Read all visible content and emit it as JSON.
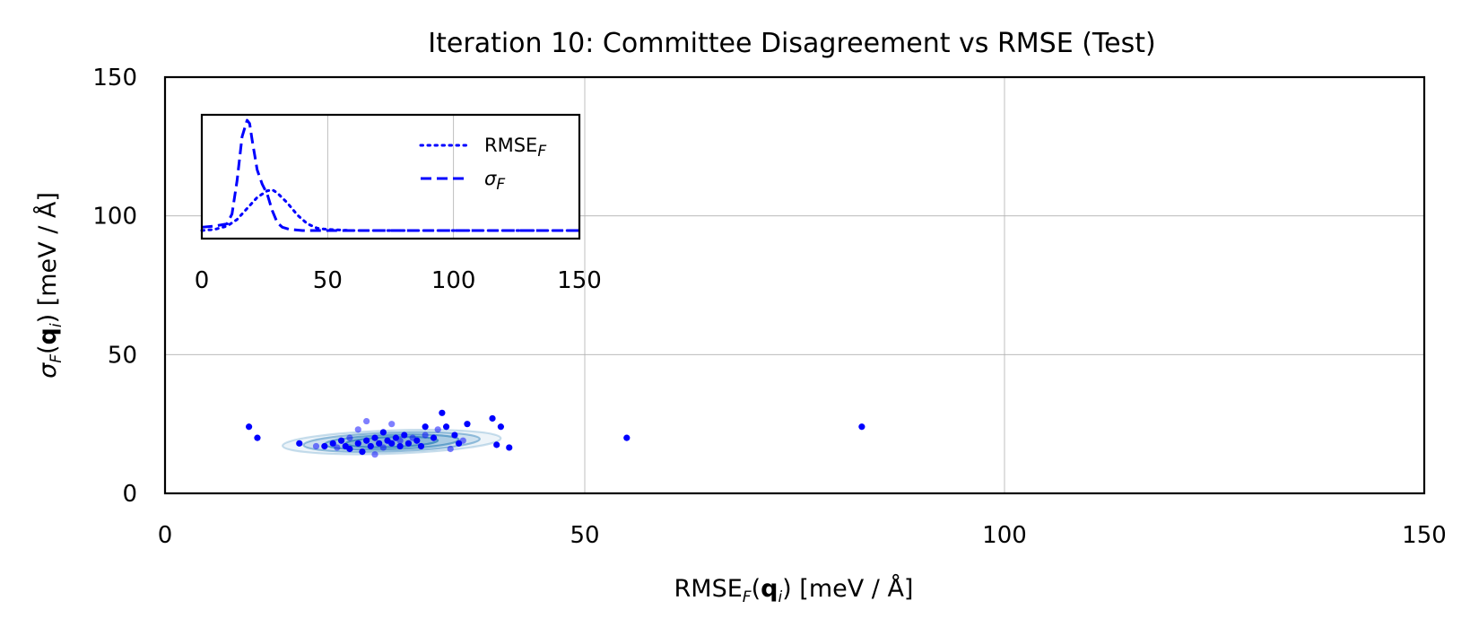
{
  "chart_data": [
    {
      "type": "scatter",
      "title": "Iteration 10: Committee Disagreement vs RMSE (Test)",
      "xlabel": "RMSE_F(q_i) [meV / Å]",
      "ylabel": "σ_F(q_i) [meV / Å]",
      "xlim": [
        0,
        150
      ],
      "ylim": [
        0,
        150
      ],
      "xticks": [
        "0",
        "50",
        "100",
        "150"
      ],
      "yticks": [
        "0",
        "50",
        "100",
        "150"
      ],
      "grid": true,
      "point_color": "#0000ff",
      "contour_color": "#2c7fb8",
      "points": [
        [
          10,
          24
        ],
        [
          11,
          20
        ],
        [
          16,
          18
        ],
        [
          18,
          17
        ],
        [
          19,
          17
        ],
        [
          20,
          18
        ],
        [
          20.5,
          16.5
        ],
        [
          21,
          19
        ],
        [
          21.5,
          17
        ],
        [
          22,
          20
        ],
        [
          22,
          16
        ],
        [
          23,
          18
        ],
        [
          23,
          23
        ],
        [
          23.5,
          15
        ],
        [
          24,
          19
        ],
        [
          24,
          26
        ],
        [
          24.5,
          17
        ],
        [
          25,
          20
        ],
        [
          25,
          14
        ],
        [
          25.5,
          18
        ],
        [
          26,
          22
        ],
        [
          26,
          16.5
        ],
        [
          26.5,
          19
        ],
        [
          27,
          18
        ],
        [
          27,
          25
        ],
        [
          27.5,
          20
        ],
        [
          28,
          17
        ],
        [
          28,
          19
        ],
        [
          28.5,
          21
        ],
        [
          29,
          18
        ],
        [
          29.5,
          20
        ],
        [
          30,
          19
        ],
        [
          30.5,
          17
        ],
        [
          31,
          21
        ],
        [
          31,
          24
        ],
        [
          32,
          20
        ],
        [
          32.5,
          23
        ],
        [
          33,
          29
        ],
        [
          33.5,
          24
        ],
        [
          34,
          16
        ],
        [
          34.5,
          21
        ],
        [
          35,
          18
        ],
        [
          35.5,
          19
        ],
        [
          36,
          25
        ],
        [
          39,
          27
        ],
        [
          39.5,
          17.5
        ],
        [
          40,
          24
        ],
        [
          41,
          16.5
        ],
        [
          55,
          20
        ],
        [
          83,
          24
        ]
      ],
      "contours": [
        {
          "center": [
            27,
            18.5
          ],
          "rx": 13,
          "ry": 4.2,
          "opacity": 0.25
        },
        {
          "center": [
            27,
            18.5
          ],
          "rx": 10.5,
          "ry": 3.4,
          "opacity": 0.45
        },
        {
          "center": [
            27,
            18.5
          ],
          "rx": 8,
          "ry": 2.6,
          "opacity": 0.6
        },
        {
          "center": [
            27,
            18.5
          ],
          "rx": 5.5,
          "ry": 1.8,
          "opacity": 0.75
        }
      ]
    },
    {
      "type": "line",
      "xlim": [
        0,
        150
      ],
      "xticks": [
        "0",
        "50",
        "100",
        "150"
      ],
      "grid": true,
      "series": [
        {
          "name": "RMSE_F",
          "style": "dotted",
          "color": "#0000ff",
          "x": [
            0,
            5,
            10,
            14,
            18,
            22,
            26,
            28,
            30,
            34,
            38,
            42,
            46,
            50,
            60,
            80,
            100,
            150
          ],
          "y": [
            0.0,
            0.01,
            0.04,
            0.1,
            0.2,
            0.3,
            0.36,
            0.37,
            0.34,
            0.25,
            0.14,
            0.06,
            0.02,
            0.01,
            0.0,
            0.0,
            0.0,
            0.0
          ]
        },
        {
          "name": "σ_F",
          "style": "dashed",
          "color": "#0000ff",
          "x": [
            0,
            5,
            10,
            12,
            14,
            16,
            18,
            19,
            20,
            22,
            24,
            26,
            28,
            30,
            32,
            35,
            40,
            50,
            150
          ],
          "y": [
            0.03,
            0.04,
            0.06,
            0.15,
            0.45,
            0.85,
            1.0,
            0.97,
            0.82,
            0.55,
            0.42,
            0.33,
            0.18,
            0.07,
            0.03,
            0.01,
            0.0,
            0.0,
            0.0
          ]
        }
      ],
      "legend": "top-right"
    }
  ]
}
